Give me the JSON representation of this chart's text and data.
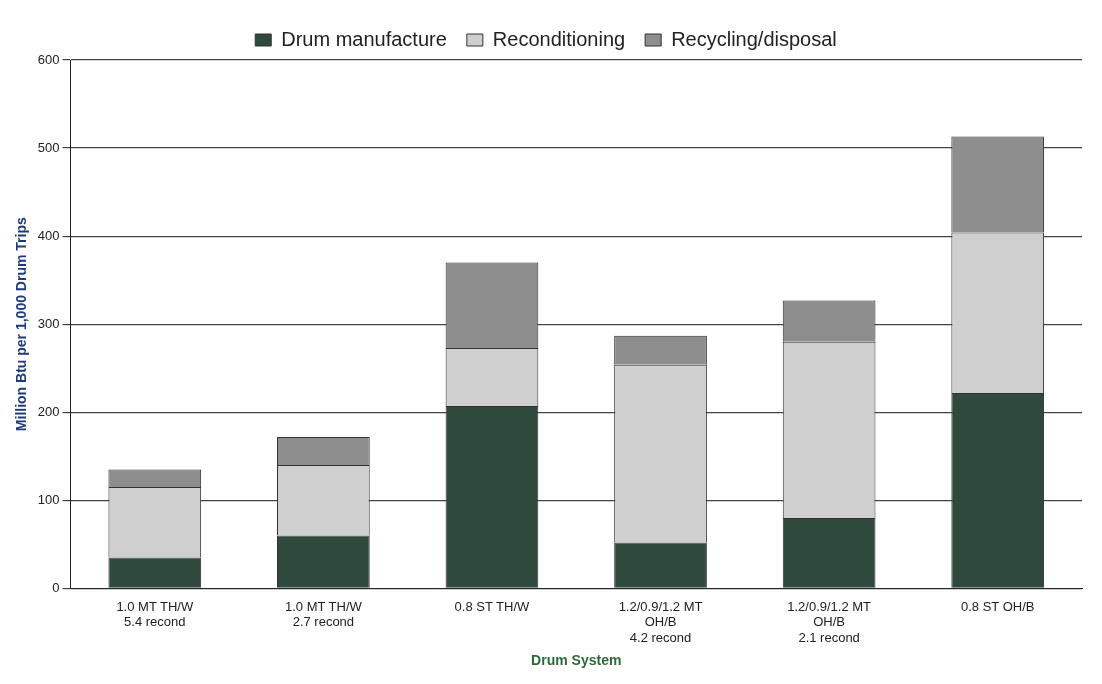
{
  "chart_data": {
    "type": "bar",
    "stacked": true,
    "xlabel": "Drum System",
    "ylabel": "Million Btu per 1,000 Drum Trips",
    "categories": [
      "1.0 MT TH/W\n5.4 recond",
      "1.0 MT TH/W\n2.7 recond",
      "0.8 ST TH/W",
      "1.2/0.9/1.2 MT\nOH/B\n4.2 recond",
      "1.2/0.9/1.2 MT\nOH/B\n2.1 recond",
      "0.8 ST OH/B"
    ],
    "series": [
      {
        "name": "Drum manufacture",
        "color": "#2f4a3c",
        "values": [
          35,
          60,
          207,
          52,
          80,
          222
        ]
      },
      {
        "name": "Reconditioning",
        "color": "#cfcfcf",
        "values": [
          80,
          80,
          66,
          202,
          200,
          182
        ]
      },
      {
        "name": "Recycling/disposal",
        "color": "#8e8e8e",
        "values": [
          20,
          32,
          97,
          33,
          47,
          109
        ]
      }
    ],
    "ylim": [
      0,
      600
    ],
    "yticks": [
      0,
      100,
      200,
      300,
      400,
      500,
      600
    ],
    "grid": "y",
    "legend": "top"
  }
}
